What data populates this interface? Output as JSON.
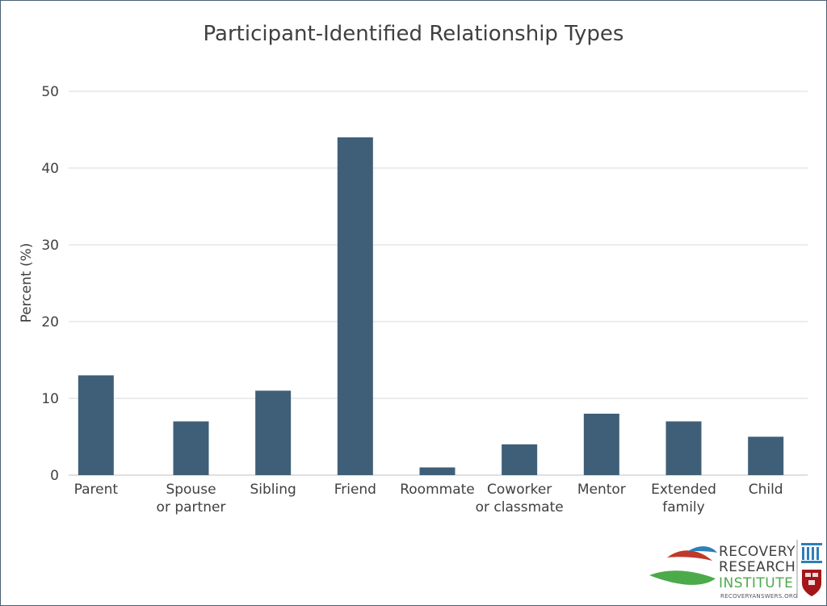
{
  "chart_data": {
    "type": "bar",
    "title": "Participant-Identified Relationship Types",
    "ylabel": "Percent (%)",
    "xlabel": "",
    "ylim": [
      0,
      50
    ],
    "yticks": [
      0,
      10,
      20,
      30,
      40,
      50
    ],
    "grid": true,
    "categories": [
      [
        "Parent"
      ],
      [
        "Spouse",
        "or partner"
      ],
      [
        "Sibling"
      ],
      [
        "Friend"
      ],
      [
        "Roommate"
      ],
      [
        "Coworker",
        "or classmate"
      ],
      [
        "Mentor"
      ],
      [
        "Extended",
        "family"
      ],
      [
        "Child"
      ]
    ],
    "values": [
      13,
      7,
      11,
      44,
      1,
      4,
      8,
      7,
      5
    ],
    "colors": {
      "bar": "#3f5f78",
      "grid": "#d9d9d9",
      "text": "#404040"
    }
  },
  "logo": {
    "line1": "RECOVERY",
    "line2": "RESEARCH",
    "line3": "INSTITUTE",
    "url": "RECOVERYANSWERS.ORG",
    "colors": {
      "red": "#c0392b",
      "blue": "#2d7fb8",
      "green": "#4daa4a",
      "shield": "#a4161a"
    }
  }
}
